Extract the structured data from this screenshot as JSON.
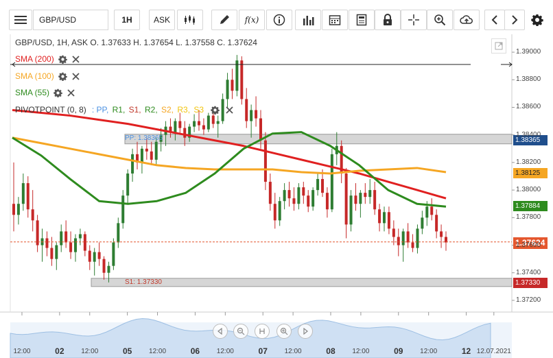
{
  "toolbar": {
    "symbol": "GBP/USD",
    "timeframe": "1H",
    "price_type": "ASK"
  },
  "header": {
    "ohlc_text": "GBP/USD, 1H, ASK   O. 1.37633 H. 1.37654 L. 1.37558 C. 1.37624"
  },
  "indicators": [
    {
      "label": "SMA (200)",
      "color": "#e02020"
    },
    {
      "label": "SMA (100)",
      "color": "#f5a623"
    },
    {
      "label": "SMA (55)",
      "color": "#2e8b1e"
    }
  ],
  "pivot": {
    "label": "PIVOTPOINT (0, 8)",
    "items": [
      {
        "text": ": PP,",
        "color": "#4a90e2"
      },
      {
        "text": "R1,",
        "color": "#2e8b1e"
      },
      {
        "text": "S1,",
        "color": "#c0392b"
      },
      {
        "text": "R2,",
        "color": "#2e8b1e"
      },
      {
        "text": "S2,",
        "color": "#f5a623"
      },
      {
        "text": "R3,",
        "color": "#f1c40f"
      },
      {
        "text": "S3",
        "color": "#f1c40f"
      }
    ],
    "pp_label": "PP: 1.38365",
    "s1_label": "S1: 1.37330"
  },
  "colors": {
    "up": "#2e7d32",
    "down": "#c62828",
    "sma200": "#e02020",
    "sma100": "#f5a623",
    "sma55": "#2e8b1e"
  },
  "price_tags": [
    {
      "value": "1.38365",
      "price": 1.38365,
      "bg": "#1f4e8c",
      "fg": "#ffffff"
    },
    {
      "value": "1.38125",
      "price": 1.38125,
      "bg": "#f5a623",
      "fg": "#222222"
    },
    {
      "value": "1.37884",
      "price": 1.37884,
      "bg": "#2e8b1e",
      "fg": "#ffffff"
    },
    {
      "value": "1.37624",
      "price": 1.37624,
      "bg": "#e4572e",
      "fg": "#ffffff"
    },
    {
      "value": "1.37330",
      "price": 1.3733,
      "bg": "#c62828",
      "fg": "#ffffff"
    }
  ],
  "chart_data": {
    "type": "candlestick",
    "y_ticks": [
      "1.39000",
      "1.38800",
      "1.38600",
      "1.38400",
      "1.38200",
      "1.38000",
      "1.37800",
      "1.37600",
      "1.37400",
      "1.37200"
    ],
    "y_tick_values": [
      1.39,
      1.388,
      1.386,
      1.384,
      1.382,
      1.38,
      1.378,
      1.376,
      1.374,
      1.372
    ],
    "ylim": [
      1.3714,
      1.3908
    ],
    "x_ticks": [
      {
        "label": "12:00",
        "bar": 3
      },
      {
        "label": "02",
        "bar": 18,
        "big": true
      },
      {
        "label": "12:00",
        "bar": 30
      },
      {
        "label": "05",
        "bar": 45,
        "big": true
      },
      {
        "label": "12:00",
        "bar": 57
      },
      {
        "label": "06",
        "bar": 72,
        "big": true
      },
      {
        "label": "12:00",
        "bar": 84
      },
      {
        "label": "07",
        "bar": 99,
        "big": true
      },
      {
        "label": "12:00",
        "bar": 111
      },
      {
        "label": "08",
        "bar": 126,
        "big": true
      },
      {
        "label": "12:00",
        "bar": 138
      },
      {
        "label": "09",
        "bar": 153,
        "big": true
      },
      {
        "label": "12:00",
        "bar": 165
      },
      {
        "label": "12",
        "bar": 180,
        "big": true
      },
      {
        "label": "12.07.2021",
        "bar": 191
      }
    ],
    "candles": [
      [
        1.379,
        1.382,
        1.377,
        1.3782
      ],
      [
        1.3782,
        1.3795,
        1.3775,
        1.379
      ],
      [
        1.379,
        1.3812,
        1.3785,
        1.3805
      ],
      [
        1.3805,
        1.381,
        1.378,
        1.3786
      ],
      [
        1.3786,
        1.38,
        1.377,
        1.3778
      ],
      [
        1.3778,
        1.3782,
        1.3755,
        1.376
      ],
      [
        1.376,
        1.3772,
        1.3748,
        1.3765
      ],
      [
        1.3765,
        1.377,
        1.3752,
        1.3758
      ],
      [
        1.3758,
        1.3766,
        1.3745,
        1.375
      ],
      [
        1.375,
        1.3762,
        1.3742,
        1.376
      ],
      [
        1.376,
        1.3775,
        1.3755,
        1.377
      ],
      [
        1.377,
        1.3778,
        1.3758,
        1.3762
      ],
      [
        1.3762,
        1.377,
        1.375,
        1.3755
      ],
      [
        1.3755,
        1.3768,
        1.3748,
        1.3765
      ],
      [
        1.3765,
        1.3772,
        1.376,
        1.3768
      ],
      [
        1.3768,
        1.377,
        1.3752,
        1.3756
      ],
      [
        1.3756,
        1.376,
        1.3742,
        1.3748
      ],
      [
        1.3748,
        1.3758,
        1.3738,
        1.3755
      ],
      [
        1.3755,
        1.3762,
        1.3745,
        1.375
      ],
      [
        1.375,
        1.3752,
        1.3735,
        1.374
      ],
      [
        1.374,
        1.3748,
        1.3733,
        1.3745
      ],
      [
        1.3745,
        1.3765,
        1.3742,
        1.3762
      ],
      [
        1.3762,
        1.378,
        1.3758,
        1.3776
      ],
      [
        1.3776,
        1.38,
        1.3772,
        1.3796
      ],
      [
        1.3796,
        1.3815,
        1.379,
        1.3812
      ],
      [
        1.3812,
        1.383,
        1.3806,
        1.3826
      ],
      [
        1.3826,
        1.3835,
        1.3815,
        1.382
      ],
      [
        1.382,
        1.3832,
        1.3812,
        1.383
      ],
      [
        1.383,
        1.3838,
        1.3822,
        1.3828
      ],
      [
        1.3828,
        1.3835,
        1.3818,
        1.3822
      ],
      [
        1.3822,
        1.3838,
        1.3818,
        1.3835
      ],
      [
        1.3835,
        1.3845,
        1.3828,
        1.384
      ],
      [
        1.384,
        1.385,
        1.3832,
        1.3846
      ],
      [
        1.3846,
        1.3852,
        1.3838,
        1.3842
      ],
      [
        1.3842,
        1.3852,
        1.3836,
        1.385
      ],
      [
        1.385,
        1.3856,
        1.384,
        1.3845
      ],
      [
        1.3845,
        1.385,
        1.3832,
        1.3838
      ],
      [
        1.3838,
        1.3848,
        1.3835,
        1.3846
      ],
      [
        1.3846,
        1.3855,
        1.3842,
        1.385
      ],
      [
        1.385,
        1.3858,
        1.3843,
        1.3847
      ],
      [
        1.3847,
        1.3852,
        1.384,
        1.3844
      ],
      [
        1.3844,
        1.3856,
        1.3842,
        1.3854
      ],
      [
        1.3854,
        1.386,
        1.3845,
        1.3848
      ],
      [
        1.3848,
        1.3854,
        1.3838,
        1.385
      ],
      [
        1.385,
        1.387,
        1.3848,
        1.3866
      ],
      [
        1.3866,
        1.3885,
        1.386,
        1.388
      ],
      [
        1.388,
        1.3888,
        1.3866,
        1.3872
      ],
      [
        1.3872,
        1.3898,
        1.3868,
        1.3894
      ],
      [
        1.3894,
        1.3897,
        1.3862,
        1.3866
      ],
      [
        1.3866,
        1.3874,
        1.3845,
        1.385
      ],
      [
        1.385,
        1.3862,
        1.3838,
        1.3858
      ],
      [
        1.3858,
        1.3868,
        1.3846,
        1.3852
      ],
      [
        1.3852,
        1.3858,
        1.383,
        1.3836
      ],
      [
        1.3836,
        1.3842,
        1.38,
        1.3806
      ],
      [
        1.3806,
        1.3812,
        1.3785,
        1.379
      ],
      [
        1.379,
        1.3798,
        1.3772,
        1.3778
      ],
      [
        1.3778,
        1.3795,
        1.3774,
        1.3792
      ],
      [
        1.3792,
        1.3805,
        1.3786,
        1.38
      ],
      [
        1.38,
        1.3806,
        1.3788,
        1.3794
      ],
      [
        1.3794,
        1.3802,
        1.3785,
        1.379
      ],
      [
        1.379,
        1.3805,
        1.3786,
        1.3802
      ],
      [
        1.3802,
        1.3806,
        1.379,
        1.3796
      ],
      [
        1.3796,
        1.38,
        1.3784,
        1.3788
      ],
      [
        1.3788,
        1.3802,
        1.3785,
        1.38
      ],
      [
        1.38,
        1.3812,
        1.3796,
        1.3808
      ],
      [
        1.3808,
        1.3815,
        1.3795,
        1.3798
      ],
      [
        1.3798,
        1.3802,
        1.378,
        1.3786
      ],
      [
        1.3786,
        1.383,
        1.3784,
        1.3826
      ],
      [
        1.3826,
        1.3842,
        1.3818,
        1.3832
      ],
      [
        1.3832,
        1.3836,
        1.3805,
        1.3812
      ],
      [
        1.3812,
        1.3816,
        1.3765,
        1.3775
      ],
      [
        1.3775,
        1.38,
        1.377,
        1.3796
      ],
      [
        1.3796,
        1.3805,
        1.3785,
        1.379
      ],
      [
        1.379,
        1.38,
        1.378,
        1.3798
      ],
      [
        1.3798,
        1.3805,
        1.379,
        1.3795
      ],
      [
        1.3795,
        1.3808,
        1.379,
        1.38
      ],
      [
        1.38,
        1.3806,
        1.3782,
        1.3786
      ],
      [
        1.3786,
        1.379,
        1.377,
        1.3776
      ],
      [
        1.3776,
        1.3788,
        1.377,
        1.3784
      ],
      [
        1.3784,
        1.3788,
        1.3768,
        1.3772
      ],
      [
        1.3772,
        1.3778,
        1.376,
        1.3766
      ],
      [
        1.3766,
        1.3772,
        1.3752,
        1.376
      ],
      [
        1.376,
        1.3772,
        1.3748,
        1.377
      ],
      [
        1.377,
        1.3776,
        1.3758,
        1.3762
      ],
      [
        1.3762,
        1.3768,
        1.3755,
        1.3758
      ],
      [
        1.3758,
        1.3775,
        1.3754,
        1.3772
      ],
      [
        1.3772,
        1.3785,
        1.3768,
        1.378
      ],
      [
        1.378,
        1.3792,
        1.3774,
        1.3788
      ],
      [
        1.3788,
        1.3794,
        1.3778,
        1.3782
      ],
      [
        1.3782,
        1.3786,
        1.3765,
        1.377
      ],
      [
        1.377,
        1.3775,
        1.3758,
        1.3766
      ],
      [
        1.3766,
        1.377,
        1.3756,
        1.3762
      ]
    ],
    "sma200": [
      1.3858,
      1.3856,
      1.3854,
      1.3851,
      1.3848,
      1.3844,
      1.384,
      1.3836,
      1.3832,
      1.3827,
      1.3822,
      1.3817,
      1.3812,
      1.3806,
      1.38,
      1.3794
    ],
    "sma100": [
      1.3838,
      1.3834,
      1.383,
      1.3826,
      1.3822,
      1.3818,
      1.3816,
      1.3815,
      1.3815,
      1.3815,
      1.3813,
      1.3812,
      1.3814,
      1.3815,
      1.3816,
      1.3813
    ],
    "sma55": [
      1.3838,
      1.3825,
      1.3808,
      1.3792,
      1.379,
      1.3792,
      1.3798,
      1.3812,
      1.383,
      1.3841,
      1.3842,
      1.3832,
      1.3818,
      1.38,
      1.379,
      1.3788
    ]
  }
}
